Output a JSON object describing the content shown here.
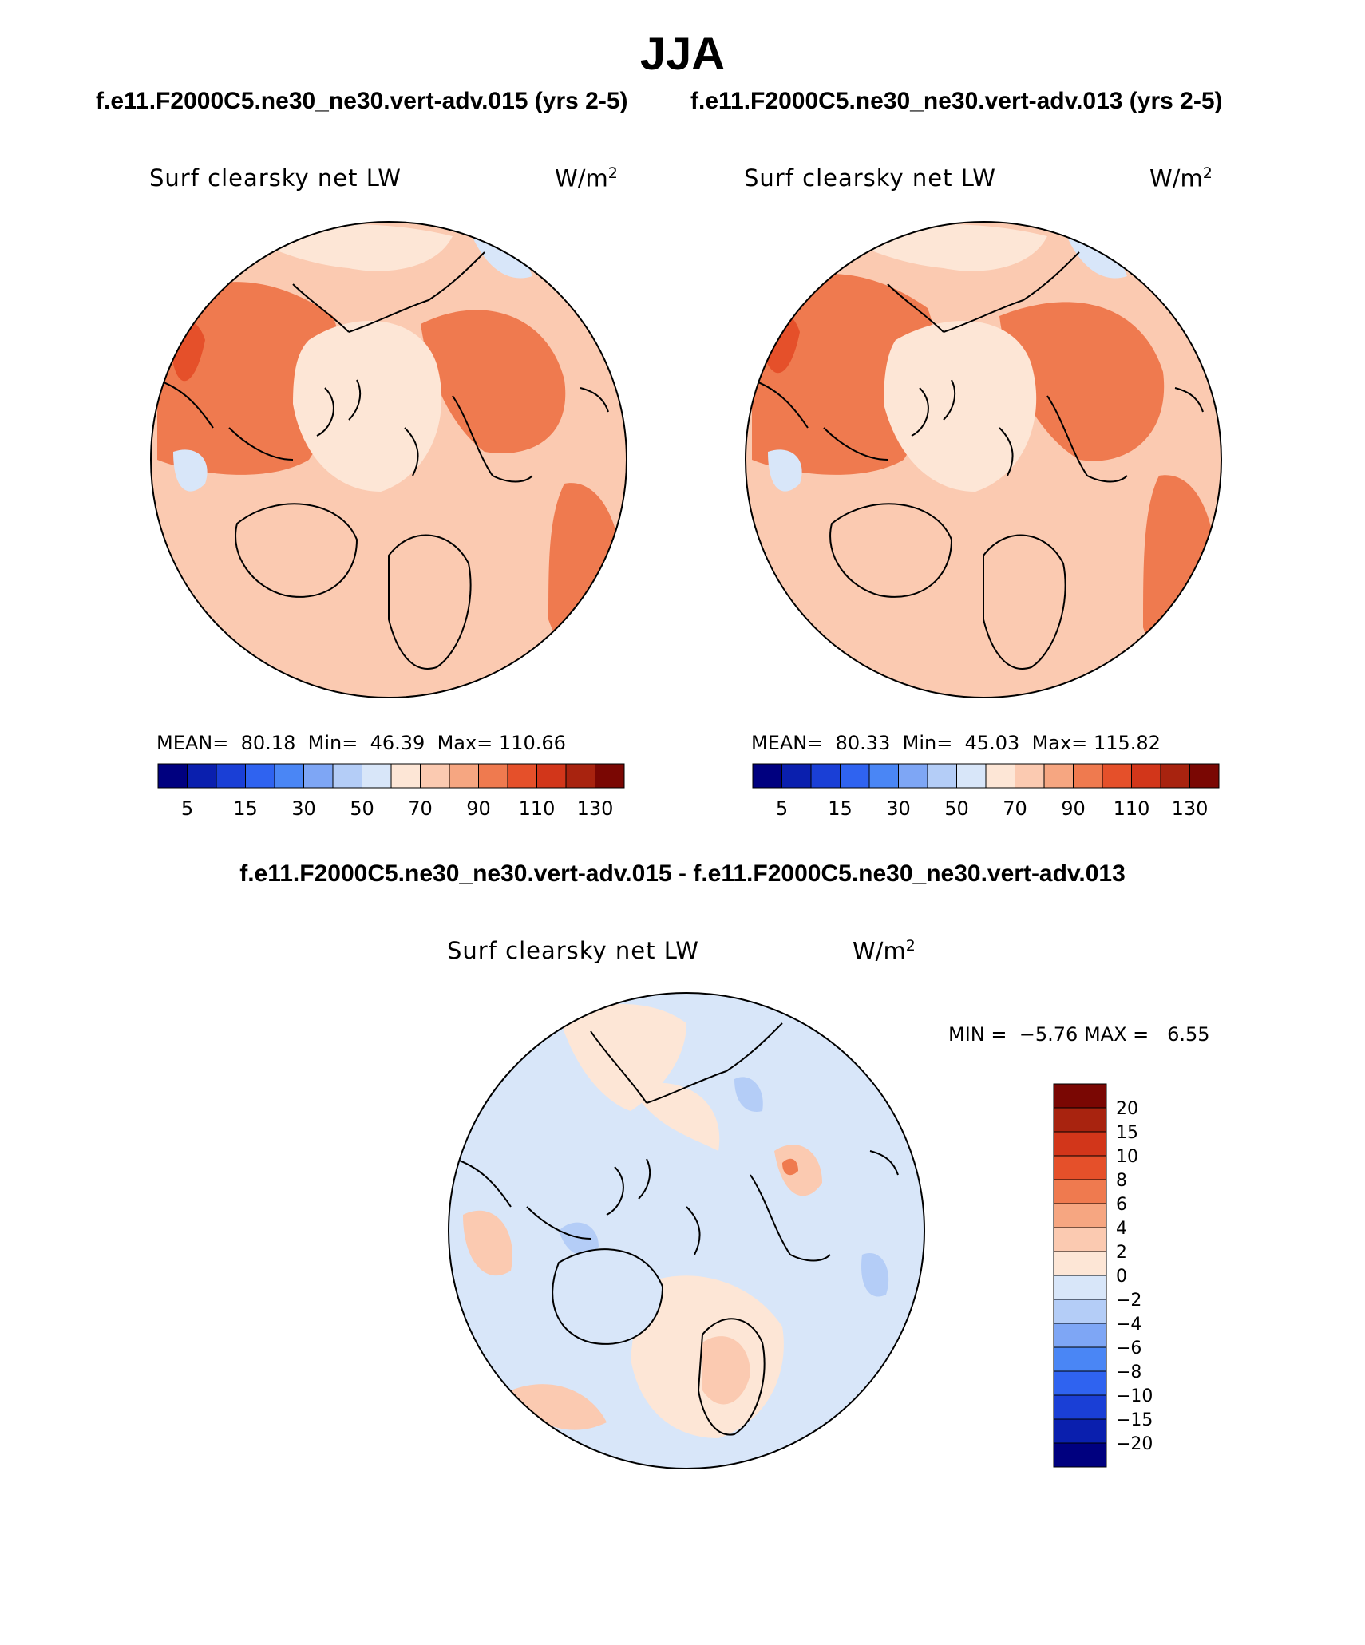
{
  "header": {
    "title": "JJA",
    "case_left": "f.e11.F2000C5.ne30_ne30.vert-adv.015 (yrs 2-5)",
    "case_right": "f.e11.F2000C5.ne30_ne30.vert-adv.013 (yrs 2-5)",
    "diff_title": "f.e11.F2000C5.ne30_ne30.vert-adv.015 - f.e11.F2000C5.ne30_ne30.vert-adv.013"
  },
  "panels": [
    {
      "variable": "Surf clearsky net LW",
      "units_base": "W/m",
      "units_exp": "2",
      "mean_label": "MEAN=",
      "mean": "80.18",
      "min_label": "Min=",
      "min": "46.39",
      "max_label": "Max=",
      "max": "110.66"
    },
    {
      "variable": "Surf clearsky net LW",
      "units_base": "W/m",
      "units_exp": "2",
      "mean_label": "MEAN=",
      "mean": "80.33",
      "min_label": "Min=",
      "min": "45.03",
      "max_label": "Max=",
      "max": "115.82"
    }
  ],
  "diff_panel": {
    "variable": "Surf clearsky net LW",
    "units_base": "W/m",
    "units_exp": "2",
    "min_label": "MIN =",
    "min": "−5.76",
    "max_label": "MAX =",
    "max": "6.55"
  },
  "colorbar_abs": {
    "colors": [
      "#00007f",
      "#0a1fae",
      "#1a3fd6",
      "#2f63f0",
      "#4a86f5",
      "#7ea6f5",
      "#b4cdf7",
      "#d8e6f9",
      "#fde6d6",
      "#fbcab1",
      "#f6a681",
      "#ef7a4f",
      "#e5502a",
      "#d2361a",
      "#a8230f",
      "#7a0703"
    ],
    "tick_labels": [
      "5",
      "15",
      "30",
      "50",
      "70",
      "90",
      "110",
      "130"
    ]
  },
  "colorbar_diff": {
    "colors_top_to_bottom": [
      "#7a0703",
      "#a8230f",
      "#d2361a",
      "#e5502a",
      "#ef7a4f",
      "#f6a681",
      "#fbcab1",
      "#fde6d6",
      "#d8e6f9",
      "#b4cdf7",
      "#7ea6f5",
      "#4a86f5",
      "#2f63f0",
      "#1a3fd6",
      "#0a1fae",
      "#00007f"
    ],
    "tick_labels": [
      "20",
      "15",
      "10",
      "8",
      "6",
      "4",
      "2",
      "0",
      "−2",
      "−4",
      "−6",
      "−8",
      "−10",
      "−15",
      "−20"
    ]
  },
  "map_colors": {
    "ocean_abs": "#fbcab1",
    "ice_abs": "#fde6d6",
    "warm_abs": "#f6a681",
    "hot_abs": "#ef7a4f",
    "cold_abs": "#d8e6f9",
    "diff_neg": "#d8e6f9",
    "diff_neg2": "#b4cdf7",
    "diff_pos": "#fde6d6",
    "diff_pos2": "#fbcab1"
  }
}
